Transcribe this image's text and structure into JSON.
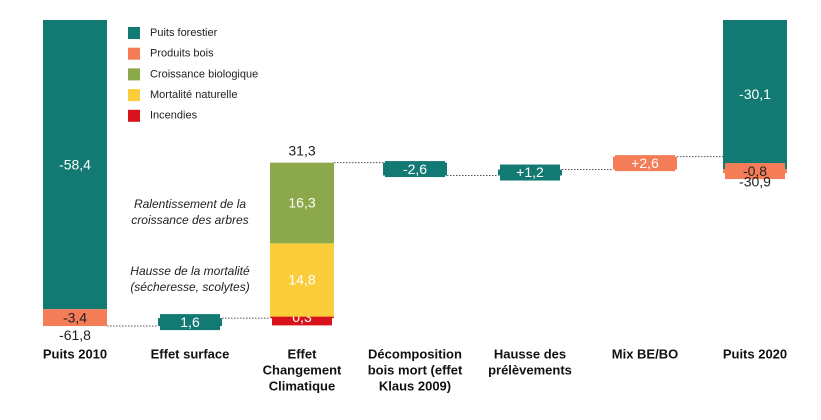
{
  "chart_data": {
    "type": "waterfall",
    "categories": [
      [
        "Puits 2010"
      ],
      [
        "Effet surface"
      ],
      [
        "Effet",
        "Changement",
        "Climatique"
      ],
      [
        "Décomposition",
        "bois mort (effet",
        "Klaus 2009)"
      ],
      [
        "Hausse des",
        "prélèvements"
      ],
      [
        "Mix BE/BO"
      ],
      [
        "Puits  2020"
      ]
    ],
    "series": [
      {
        "name": "Puits forestier",
        "color": "#127a72",
        "values": [
          -58.4,
          1.6,
          null,
          -2.6,
          1.2,
          null,
          -30.1
        ],
        "value_labels": [
          "-58,4",
          "1,6",
          null,
          "-2,6",
          "+1,2",
          null,
          "-30,1"
        ]
      },
      {
        "name": "Produits bois",
        "color": "#f47c57",
        "values": [
          -3.4,
          null,
          null,
          null,
          null,
          2.6,
          -0.8
        ],
        "value_labels": [
          "-3,4",
          null,
          null,
          null,
          null,
          "+2,6",
          "-0,8"
        ]
      },
      {
        "name": "Croissance biologique",
        "color": "#8ba84a",
        "values": [
          null,
          null,
          16.3,
          null,
          null,
          null,
          null
        ],
        "value_labels": [
          null,
          null,
          "16,3",
          null,
          null,
          null,
          null
        ]
      },
      {
        "name": "Mortalité naturelle",
        "color": "#fbcd3b",
        "values": [
          null,
          null,
          14.8,
          null,
          null,
          null,
          null
        ],
        "value_labels": [
          null,
          null,
          "14,8",
          null,
          null,
          null,
          null
        ]
      },
      {
        "name": "Incendies",
        "color": "#d8131c",
        "values": [
          null,
          null,
          0.3,
          null,
          null,
          null,
          null
        ],
        "value_labels": [
          null,
          null,
          "0,3",
          null,
          null,
          null,
          null
        ]
      }
    ],
    "totals": [
      -61.8,
      null,
      31.3,
      null,
      null,
      null,
      -30.9
    ],
    "total_labels": [
      "-61,8",
      null,
      "31,3",
      null,
      null,
      null,
      "-30,9"
    ],
    "annotations": [
      [
        "Ralentissement de la",
        "croissance des arbres"
      ],
      [
        "Hausse de la mortalité",
        "(sécheresse, scolytes)"
      ]
    ],
    "ylim": [
      -63,
      0
    ]
  }
}
